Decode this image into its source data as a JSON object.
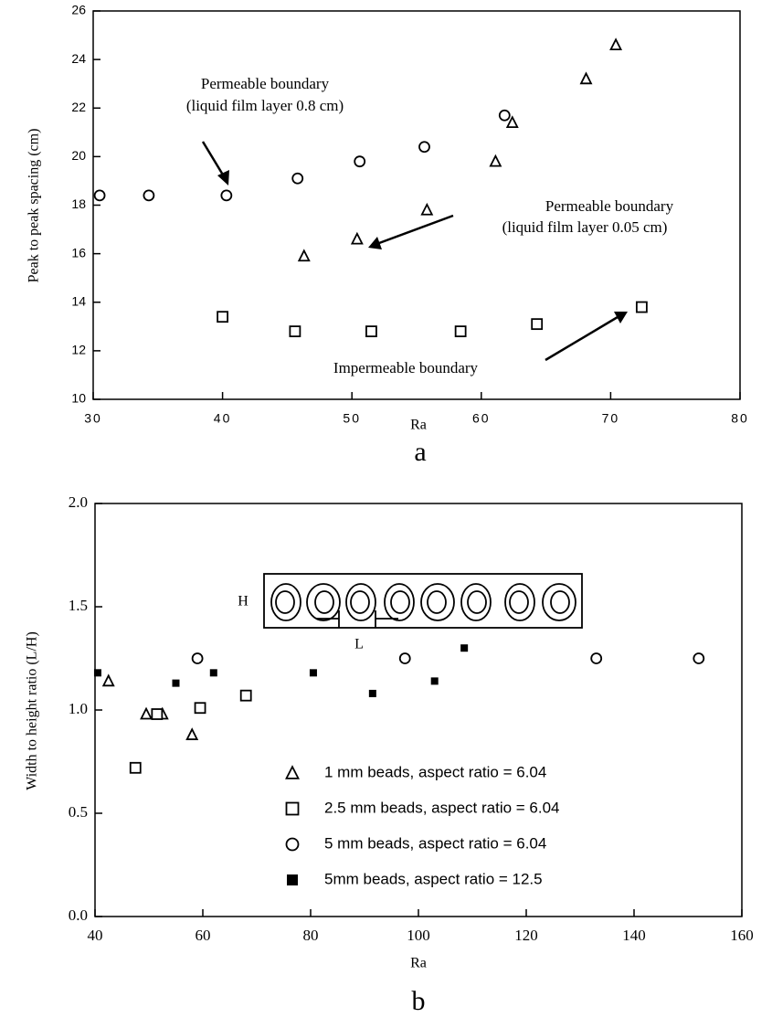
{
  "chart_data": [
    {
      "type": "scatter",
      "x_label": "Ra",
      "y_label": "Peak to peak spacing (cm)",
      "panel_label": "a",
      "xlim": [
        30,
        80
      ],
      "xticks": [
        30,
        40,
        50,
        60,
        70,
        80
      ],
      "ylim": [
        10,
        26
      ],
      "yticks": [
        10,
        12,
        14,
        16,
        18,
        20,
        22,
        24,
        26
      ],
      "annotations": [
        "Permeable boundary",
        "(liquid film  layer 0.8 cm)",
        "Permeable boundary",
        "(liquid film layer 0.05 cm)",
        "Impermeable boundary"
      ],
      "series": [
        {
          "marker": "circle",
          "color": "#000000",
          "x": [
            30.5,
            34.3,
            40.3,
            45.8,
            50.6,
            55.6,
            61.8
          ],
          "values": [
            18.4,
            18.4,
            18.4,
            19.1,
            19.8,
            20.4,
            21.7
          ]
        },
        {
          "marker": "triangle",
          "color": "#000000",
          "x": [
            46.3,
            50.4,
            55.8,
            61.1,
            62.4,
            68.1,
            70.4
          ],
          "values": [
            15.9,
            16.6,
            17.8,
            19.8,
            21.4,
            23.2,
            24.6
          ]
        },
        {
          "marker": "square",
          "color": "#000000",
          "x": [
            40.0,
            45.6,
            51.5,
            58.4,
            64.3,
            72.4
          ],
          "values": [
            13.4,
            12.8,
            12.8,
            12.8,
            13.1,
            13.8
          ]
        }
      ]
    },
    {
      "type": "scatter",
      "x_label": "Ra",
      "y_label": "Width to height ratio (L/H)",
      "panel_label": "b",
      "xlim": [
        40,
        160
      ],
      "xticks": [
        40,
        60,
        80,
        100,
        120,
        140,
        160
      ],
      "ylim": [
        0,
        2
      ],
      "yticks": [
        {
          "value": 0,
          "label": "0.0"
        },
        0.5,
        {
          "value": 1,
          "label": "1.0"
        },
        1.5,
        {
          "value": 2,
          "label": "2.0"
        }
      ],
      "annotations": [
        "H",
        "L"
      ],
      "series": [
        {
          "name": "1 mm beads, aspect ratio = 6.04",
          "marker": "triangle",
          "color": "#000000",
          "x": [
            42.5,
            49.5,
            52.5,
            58.0
          ],
          "values": [
            1.14,
            0.98,
            0.98,
            0.88
          ]
        },
        {
          "name": "2.5 mm beads, aspect ratio = 6.04",
          "marker": "square",
          "color": "#000000",
          "x": [
            47.5,
            51.5,
            59.5,
            68.0
          ],
          "values": [
            0.72,
            0.98,
            1.01,
            1.07
          ]
        },
        {
          "name": "5 mm beads, aspect ratio = 6.04",
          "marker": "circle",
          "color": "#000000",
          "x": [
            59.0,
            97.5,
            133.0,
            152.0
          ],
          "values": [
            1.25,
            1.25,
            1.25,
            1.25
          ]
        },
        {
          "name": "5mm beads, aspect ratio = 12.5",
          "marker": "filled-square",
          "color": "#000000",
          "x": [
            40.5,
            55.0,
            62.0,
            80.5,
            91.5,
            103.0,
            108.5
          ],
          "values": [
            1.18,
            1.13,
            1.18,
            1.18,
            1.08,
            1.14,
            1.3
          ]
        }
      ]
    }
  ]
}
